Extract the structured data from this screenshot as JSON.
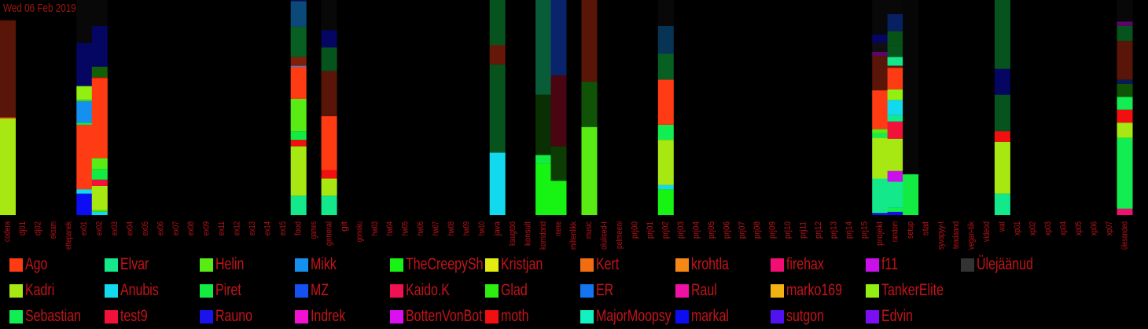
{
  "title": "Wed 06 Feb 2019",
  "chart_data": {
    "type": "bar",
    "stacked": true,
    "ylim": [
      0,
      100
    ],
    "categories": [
      "codera",
      "dj01",
      "dj02",
      "eksam",
      "ettepanek",
      "ex01",
      "ex02",
      "ex03",
      "ex04",
      "ex05",
      "ex06",
      "ex07",
      "ex08",
      "ex09",
      "ex11",
      "ex12",
      "ex13",
      "ex14",
      "ex15",
      "food",
      "games",
      "general",
      "git",
      "gomoku",
      "hw03",
      "hw04",
      "hw05",
      "hw06",
      "hw07",
      "hw08",
      "hw09",
      "hw10",
      "java",
      "kaugtöö",
      "konsult",
      "korridorid",
      "meme",
      "miltenlikk",
      "music",
      "olulised-t",
      "pelmeeni",
      "prj00",
      "prj01",
      "prj02",
      "prj03",
      "prj04",
      "prj05",
      "prj06",
      "prj07",
      "prj08",
      "prj09",
      "prj10",
      "prj11",
      "prj12",
      "prj13",
      "prj14",
      "prj15",
      "projekt",
      "random",
      "setup",
      "stat",
      "syvapyy-t",
      "teadaand",
      "vegan-tiik",
      "videod",
      "wat",
      "xp01",
      "xp02",
      "xp03",
      "xp04",
      "xp05",
      "xp06",
      "xp07",
      "ülesanded"
    ],
    "series_colors": {
      "Ago": "#ff3b14",
      "Elvar": "#13e88b",
      "Helin": "#58ec14",
      "Mikk": "#1491ef",
      "TheCreepySh": "#17f312",
      "Kristjan": "#e3ec11",
      "Kert": "#f26c12",
      "krohtla": "#f58716",
      "firehax": "#f20f74",
      "f11": "#c910ea",
      "Ülejäänud": "#333333",
      "Kadri": "#a7e812",
      "Anubis": "#12d9ee",
      "Piret": "#13eb43",
      "MZ": "#1550f2",
      "Kaido.K": "#ef1151",
      "Glad": "#2eed10",
      "ER": "#1375ef",
      "Raul": "#ef10a4",
      "marko169": "#f2b214",
      "TankerElite": "#93ee12",
      "Sebastian": "#12ed52",
      "test9": "#f21239",
      "Rauno": "#1a13ee",
      "Indrek": "#f012d0",
      "BottenVonBot": "#db10f1",
      "moth": "#f20f0f",
      "MajorMoopsy": "#12f1c0",
      "markal": "#0d0df4",
      "sutgon": "#5012f0",
      "Edvin": "#7a10f2"
    },
    "stacks": {
      "codera": [
        [
          "Kadri",
          45.0
        ],
        [
          "Ago",
          0.5
        ],
        [
          "Ago",
          45.0,
          0.35
        ],
        [
          "Ülejäänud",
          9.5,
          0.0
        ]
      ],
      "ex01": [
        [
          "markal",
          10
        ],
        [
          "Anubis",
          2
        ],
        [
          "Ago",
          30
        ],
        [
          "Sebastian",
          1
        ],
        [
          "Mikk",
          10
        ],
        [
          "Helin",
          1
        ],
        [
          "TankerElite",
          6
        ],
        [
          "markal",
          20,
          0.4
        ],
        [
          "Ülejäänud",
          20,
          0.15
        ]
      ],
      "ex02": [
        [
          "Anubis",
          1.5
        ],
        [
          "Helin",
          1
        ],
        [
          "Kadri",
          11
        ],
        [
          "test9",
          3
        ],
        [
          "Piret",
          5
        ],
        [
          "Helin",
          5
        ],
        [
          "Ago",
          37
        ],
        [
          "moth",
          0.5
        ],
        [
          "Glad",
          5,
          0.4
        ],
        [
          "markal",
          19,
          0.4
        ],
        [
          "Ülejäänud",
          12,
          0.15
        ]
      ],
      "food": [
        [
          "Elvar",
          9
        ],
        [
          "Kadri",
          23
        ],
        [
          "moth",
          3
        ],
        [
          "Piret",
          4
        ],
        [
          "Helin",
          15
        ],
        [
          "Ago",
          15
        ],
        [
          "Mikk",
          0.5
        ],
        [
          "Ago",
          4,
          0.5
        ],
        [
          "Sebastian",
          14,
          0.4
        ],
        [
          "Mikk",
          12,
          0.5
        ],
        [
          "markal",
          9,
          0.35
        ]
      ],
      "general": [
        [
          "Elvar",
          9
        ],
        [
          "Kadri",
          8
        ],
        [
          "moth",
          4
        ],
        [
          "Ago",
          25
        ],
        [
          "Ago",
          21,
          0.35
        ],
        [
          "Sebastian",
          11,
          0.35
        ],
        [
          "markal",
          8,
          0.4
        ],
        [
          "Ülejäänud",
          14,
          0.15
        ]
      ],
      "java": [
        [
          "Anubis",
          29
        ],
        [
          "Sebastian",
          41,
          0.35
        ],
        [
          "Ago",
          9,
          0.4
        ],
        [
          "Sebastian",
          21,
          0.35
        ]
      ],
      "korridorid": [
        [
          "TheCreepySh",
          24
        ],
        [
          "Piret",
          4
        ],
        [
          "Glad",
          28,
          0.2
        ],
        [
          "Elvar",
          44,
          0.4
        ]
      ],
      "meme": [
        [
          "TheCreepySh",
          16
        ],
        [
          "Glad",
          16,
          0.25
        ],
        [
          "test9",
          33,
          0.3
        ],
        [
          "MZ",
          35,
          0.45
        ]
      ],
      "music": [
        [
          "Helin",
          41
        ],
        [
          "Glad",
          21,
          0.35
        ],
        [
          "Ago",
          38,
          0.35
        ]
      ],
      "prj02": [
        [
          "TheCreepySh",
          12
        ],
        [
          "Anubis",
          2
        ],
        [
          "Kadri",
          21
        ],
        [
          "Sebastian",
          7
        ],
        [
          "Ago",
          21
        ],
        [
          "Sebastian",
          12,
          0.4
        ],
        [
          "Mikk",
          13,
          0.35
        ],
        [
          "Ülejäänud",
          12,
          0.15
        ]
      ],
      "projekt": [
        [
          "Rauno",
          1
        ],
        [
          "Elvar",
          16
        ],
        [
          "Kadri",
          19
        ],
        [
          "Sebastian",
          2
        ],
        [
          "Helin",
          2
        ],
        [
          "Ago",
          18
        ],
        [
          "Ago",
          16,
          0.35
        ],
        [
          "f11",
          2,
          0.45
        ],
        [
          "Ülejäänud",
          4,
          0.3
        ],
        [
          "markal",
          4,
          0.4
        ],
        [
          "Ülejäänud",
          16,
          0.15
        ]
      ],
      "random": [
        [
          "markal",
          1.5
        ],
        [
          "Sebastian",
          2
        ],
        [
          "Elvar",
          12
        ],
        [
          "f11",
          5
        ],
        [
          "Kadri",
          15
        ],
        [
          "test9",
          8
        ],
        [
          "Elvar",
          3
        ],
        [
          "Anubis",
          7
        ],
        [
          "TankerElite",
          5
        ],
        [
          "Ago",
          10
        ],
        [
          "Ago",
          1,
          0.4
        ],
        [
          "Elvar",
          4
        ],
        [
          "Sebastian",
          5,
          0.35
        ],
        [
          "Piret",
          7,
          0.35
        ],
        [
          "MZ",
          8,
          0.4
        ],
        [
          "Ülejäänud",
          6.5,
          0.15
        ]
      ],
      "setup": [
        [
          "Piret",
          19
        ],
        [
          "Ülejäänud",
          81,
          0.12
        ]
      ],
      "wat": [
        [
          "Elvar",
          10
        ],
        [
          "Kadri",
          24
        ],
        [
          "moth",
          5
        ],
        [
          "Sebastian",
          17,
          0.35
        ],
        [
          "markal",
          12,
          0.4
        ],
        [
          "Sebastian",
          33,
          0.35
        ]
      ],
      "ülesanded": [
        [
          "firehax",
          3
        ],
        [
          "Sebastian",
          33
        ],
        [
          "Kadri",
          7
        ],
        [
          "moth",
          6
        ],
        [
          "Sebastian",
          6
        ],
        [
          "Glad",
          6,
          0.35
        ],
        [
          "MZ",
          2,
          0.35
        ],
        [
          "Ago",
          18,
          0.35
        ],
        [
          "Sebastian",
          7,
          0.35
        ],
        [
          "f11",
          2,
          0.45
        ],
        [
          "Ülejäänud",
          10,
          0.15
        ]
      ]
    }
  },
  "legend": [
    [
      "Ago",
      "Elvar",
      "Helin",
      "Mikk",
      "TheCreepySh",
      "Kristjan",
      "Kert",
      "krohtla",
      "firehax",
      "f11",
      "Ülejäänud"
    ],
    [
      "Kadri",
      "Anubis",
      "Piret",
      "MZ",
      "Kaido.K",
      "Glad",
      "ER",
      "Raul",
      "marko169",
      "TankerElite"
    ],
    [
      "Sebastian",
      "test9",
      "Rauno",
      "Indrek",
      "BottenVonBot",
      "moth",
      "MajorMoopsy",
      "markal",
      "sutgon",
      "Edvin"
    ]
  ]
}
